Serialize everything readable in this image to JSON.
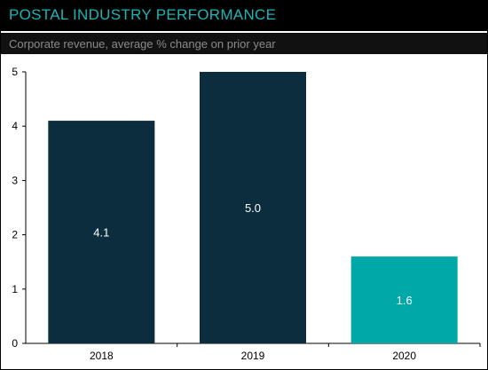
{
  "header": {
    "title": "POSTAL INDUSTRY PERFORMANCE",
    "subtitle": "Corporate revenue, average % change on prior year"
  },
  "colors": {
    "title_text": "#1ab5b5",
    "bar_default": "#0b2d3d",
    "bar_highlight": "#00a8a8"
  },
  "chart_data": {
    "type": "bar",
    "title": "POSTAL INDUSTRY PERFORMANCE",
    "subtitle": "Corporate revenue, average % change on prior year",
    "categories": [
      "2018",
      "2019",
      "2020"
    ],
    "values": [
      4.1,
      5.0,
      1.6
    ],
    "data_labels": [
      "4.1",
      "5.0",
      "1.6"
    ],
    "bar_colors": [
      "#0b2d3d",
      "#0b2d3d",
      "#00a8a8"
    ],
    "ylim": [
      0,
      5
    ],
    "yticks": [
      0,
      1,
      2,
      3,
      4,
      5
    ],
    "xlabel": "",
    "ylabel": "",
    "grid": false,
    "legend": "none"
  }
}
